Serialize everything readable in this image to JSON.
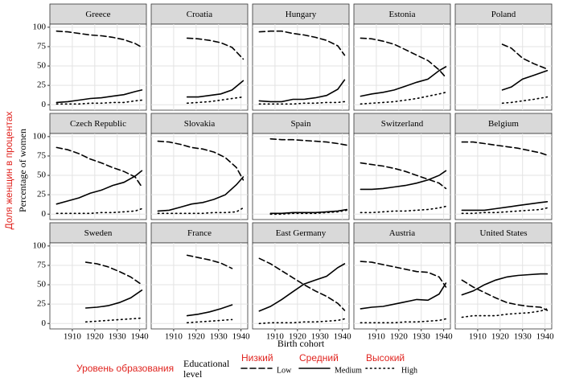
{
  "chart_data": {
    "type": "line",
    "y_label": "Percentage of women",
    "y_label_ru": "Доля женщин в процентах",
    "x_label": "Birth cohort",
    "legend_title": "Educational level",
    "legend_title_ru": "Уровень образования",
    "legend": [
      {
        "name": "Low",
        "label_ru": "Низкий",
        "dash": "7,4",
        "color": "#000000"
      },
      {
        "name": "Medium",
        "label_ru": "Средний",
        "dash": "none",
        "color": "#000000"
      },
      {
        "name": "High",
        "label_ru": "Высокий",
        "dash": "1.5,4",
        "color": "#000000"
      }
    ],
    "xlim": [
      1900,
      1943
    ],
    "xticks": [
      1910,
      1920,
      1930,
      1940
    ],
    "ylim": [
      -7,
      104
    ],
    "yticks": [
      0,
      25,
      50,
      75,
      100
    ],
    "grid": true,
    "panels": [
      {
        "title": "Greece",
        "series": [
          {
            "x": [
              1903,
              1908,
              1913,
              1918,
              1923,
              1928,
              1933,
              1938,
              1941
            ],
            "values": [
              95,
              94,
              92,
              90,
              89,
              87,
              84,
              79,
              74
            ]
          },
          {
            "x": [
              1903,
              1908,
              1913,
              1918,
              1923,
              1928,
              1933,
              1938,
              1941
            ],
            "values": [
              3,
              4,
              6,
              8,
              9,
              11,
              13,
              17,
              19
            ]
          },
          {
            "x": [
              1903,
              1908,
              1913,
              1918,
              1923,
              1928,
              1933,
              1938,
              1941
            ],
            "values": [
              1,
              1,
              1,
              2,
              2,
              3,
              3,
              5,
              6
            ]
          }
        ]
      },
      {
        "title": "Croatia",
        "series": [
          {
            "x": [
              1916,
              1921,
              1926,
              1931,
              1936,
              1941
            ],
            "values": [
              86,
              85,
              83,
              80,
              74,
              59
            ]
          },
          {
            "x": [
              1916,
              1921,
              1926,
              1931,
              1936,
              1941
            ],
            "values": [
              10,
              10,
              12,
              14,
              19,
              31
            ]
          },
          {
            "x": [
              1916,
              1921,
              1926,
              1931,
              1936,
              1941
            ],
            "values": [
              2,
              3,
              4,
              6,
              8,
              10
            ]
          }
        ]
      },
      {
        "title": "Hungary",
        "series": [
          {
            "x": [
              1903,
              1908,
              1913,
              1918,
              1923,
              1928,
              1933,
              1938,
              1941
            ],
            "values": [
              94,
              95,
              95,
              92,
              90,
              87,
              83,
              76,
              64
            ]
          },
          {
            "x": [
              1903,
              1908,
              1913,
              1918,
              1923,
              1928,
              1933,
              1938,
              1941
            ],
            "values": [
              5,
              4,
              4,
              7,
              7,
              9,
              12,
              20,
              32
            ]
          },
          {
            "x": [
              1903,
              1908,
              1913,
              1918,
              1923,
              1928,
              1933,
              1938,
              1941
            ],
            "values": [
              1,
              1,
              1,
              1,
              2,
              2,
              3,
              3,
              4
            ]
          }
        ]
      },
      {
        "title": "Estonia",
        "series": [
          {
            "x": [
              1903,
              1908,
              1913,
              1918,
              1923,
              1928,
              1933,
              1938,
              1941
            ],
            "values": [
              86,
              85,
              82,
              78,
              71,
              64,
              57,
              45,
              35
            ]
          },
          {
            "x": [
              1903,
              1908,
              1913,
              1918,
              1923,
              1928,
              1933,
              1938,
              1941
            ],
            "values": [
              11,
              14,
              16,
              19,
              24,
              29,
              33,
              44,
              49
            ]
          },
          {
            "x": [
              1903,
              1908,
              1913,
              1918,
              1923,
              1928,
              1933,
              1938,
              1941
            ],
            "values": [
              1,
              2,
              3,
              4,
              6,
              8,
              11,
              14,
              16
            ]
          }
        ]
      },
      {
        "title": "Poland",
        "series": [
          {
            "x": [
              1921,
              1925,
              1930,
              1935,
              1941
            ],
            "values": [
              78,
              73,
              60,
              53,
              46
            ]
          },
          {
            "x": [
              1921,
              1925,
              1930,
              1935,
              1941
            ],
            "values": [
              19,
              23,
              33,
              38,
              44
            ]
          },
          {
            "x": [
              1921,
              1925,
              1930,
              1935,
              1941
            ],
            "values": [
              2,
              3,
              5,
              7,
              10
            ]
          }
        ]
      },
      {
        "title": "Czech Republic",
        "series": [
          {
            "x": [
              1903,
              1908,
              1913,
              1918,
              1923,
              1928,
              1933,
              1938,
              1941
            ],
            "values": [
              86,
              83,
              78,
              71,
              66,
              60,
              55,
              48,
              35
            ]
          },
          {
            "x": [
              1903,
              1908,
              1913,
              1918,
              1923,
              1928,
              1933,
              1938,
              1941
            ],
            "values": [
              13,
              17,
              21,
              27,
              31,
              37,
              41,
              49,
              56
            ]
          },
          {
            "x": [
              1903,
              1908,
              1913,
              1918,
              1923,
              1928,
              1933,
              1938,
              1941
            ],
            "values": [
              1,
              1,
              1,
              1,
              2,
              2,
              3,
              4,
              7
            ]
          }
        ]
      },
      {
        "title": "Slovakia",
        "series": [
          {
            "x": [
              1903,
              1908,
              1913,
              1918,
              1923,
              1928,
              1933,
              1938,
              1941
            ],
            "values": [
              94,
              93,
              90,
              86,
              84,
              80,
              73,
              60,
              44
            ]
          },
          {
            "x": [
              1903,
              1908,
              1913,
              1918,
              1923,
              1928,
              1933,
              1938,
              1941
            ],
            "values": [
              4,
              5,
              9,
              13,
              15,
              19,
              25,
              38,
              48
            ]
          },
          {
            "x": [
              1903,
              1908,
              1913,
              1918,
              1923,
              1928,
              1933,
              1938,
              1941
            ],
            "values": [
              1,
              1,
              1,
              1,
              1,
              2,
              2,
              3,
              8
            ]
          }
        ]
      },
      {
        "title": "Spain",
        "series": [
          {
            "x": [
              1908,
              1913,
              1918,
              1923,
              1928,
              1933,
              1938,
              1942
            ],
            "values": [
              97,
              96,
              96,
              95,
              94,
              93,
              91,
              89
            ]
          },
          {
            "x": [
              1908,
              1913,
              1918,
              1923,
              1928,
              1933,
              1938,
              1942
            ],
            "values": [
              1,
              1,
              2,
              2,
              2,
              3,
              4,
              6
            ]
          },
          {
            "x": [
              1908,
              1913,
              1918,
              1923,
              1928,
              1933,
              1938,
              1942
            ],
            "values": [
              0,
              0,
              1,
              1,
              1,
              2,
              3,
              5
            ]
          }
        ]
      },
      {
        "title": "Switzerland",
        "series": [
          {
            "x": [
              1903,
              1908,
              1913,
              1918,
              1923,
              1928,
              1933,
              1938,
              1941
            ],
            "values": [
              66,
              64,
              62,
              59,
              55,
              50,
              45,
              40,
              33
            ]
          },
          {
            "x": [
              1903,
              1908,
              1913,
              1918,
              1923,
              1928,
              1933,
              1938,
              1941
            ],
            "values": [
              32,
              32,
              33,
              35,
              37,
              40,
              44,
              50,
              56
            ]
          },
          {
            "x": [
              1903,
              1908,
              1913,
              1918,
              1923,
              1928,
              1933,
              1938,
              1941
            ],
            "values": [
              2,
              2,
              3,
              4,
              4,
              5,
              6,
              8,
              10
            ]
          }
        ]
      },
      {
        "title": "Belgium",
        "series": [
          {
            "x": [
              1903,
              1908,
              1913,
              1918,
              1923,
              1928,
              1933,
              1938,
              1941
            ],
            "values": [
              93,
              93,
              91,
              89,
              87,
              85,
              82,
              79,
              76
            ]
          },
          {
            "x": [
              1903,
              1908,
              1913,
              1918,
              1923,
              1928,
              1933,
              1938,
              1941
            ],
            "values": [
              5,
              5,
              5,
              7,
              9,
              11,
              13,
              15,
              16
            ]
          },
          {
            "x": [
              1903,
              1908,
              1913,
              1918,
              1923,
              1928,
              1933,
              1938,
              1941
            ],
            "values": [
              1,
              1,
              2,
              2,
              3,
              4,
              5,
              6,
              8
            ]
          }
        ]
      },
      {
        "title": "Sweden",
        "series": [
          {
            "x": [
              1916,
              1921,
              1926,
              1931,
              1936,
              1941
            ],
            "values": [
              79,
              77,
              73,
              67,
              60,
              50
            ]
          },
          {
            "x": [
              1916,
              1921,
              1926,
              1931,
              1936,
              1941
            ],
            "values": [
              20,
              21,
              23,
              27,
              33,
              43
            ]
          },
          {
            "x": [
              1916,
              1921,
              1926,
              1931,
              1936,
              1941
            ],
            "values": [
              2,
              3,
              4,
              5,
              6,
              7
            ]
          }
        ]
      },
      {
        "title": "France",
        "series": [
          {
            "x": [
              1916,
              1921,
              1926,
              1931,
              1936
            ],
            "values": [
              88,
              85,
              82,
              78,
              71
            ]
          },
          {
            "x": [
              1916,
              1921,
              1926,
              1931,
              1936
            ],
            "values": [
              10,
              12,
              15,
              19,
              24
            ]
          },
          {
            "x": [
              1916,
              1921,
              1926,
              1931,
              1936
            ],
            "values": [
              1,
              2,
              3,
              4,
              5
            ]
          }
        ]
      },
      {
        "title": "East Germany",
        "series": [
          {
            "x": [
              1903,
              1908,
              1913,
              1918,
              1923,
              1928,
              1933,
              1938,
              1941
            ],
            "values": [
              84,
              77,
              68,
              59,
              50,
              42,
              35,
              26,
              17
            ]
          },
          {
            "x": [
              1903,
              1908,
              1913,
              1918,
              1923,
              1928,
              1933,
              1938,
              1941
            ],
            "values": [
              16,
              22,
              31,
              41,
              51,
              56,
              61,
              72,
              77
            ]
          },
          {
            "x": [
              1903,
              1908,
              1913,
              1918,
              1923,
              1928,
              1933,
              1938,
              1941
            ],
            "values": [
              0,
              1,
              1,
              1,
              2,
              2,
              3,
              4,
              6
            ]
          }
        ]
      },
      {
        "title": "Austria",
        "series": [
          {
            "x": [
              1903,
              1908,
              1913,
              1918,
              1923,
              1928,
              1933,
              1938,
              1941
            ],
            "values": [
              80,
              79,
              76,
              73,
              70,
              67,
              66,
              60,
              47
            ]
          },
          {
            "x": [
              1903,
              1908,
              1913,
              1918,
              1923,
              1928,
              1933,
              1938,
              1941
            ],
            "values": [
              19,
              21,
              22,
              25,
              28,
              31,
              30,
              38,
              52
            ]
          },
          {
            "x": [
              1903,
              1908,
              1913,
              1918,
              1923,
              1928,
              1933,
              1938,
              1941
            ],
            "values": [
              1,
              1,
              1,
              1,
              2,
              2,
              3,
              4,
              6
            ]
          }
        ]
      },
      {
        "title": "United States",
        "series": [
          {
            "x": [
              1903,
              1908,
              1913,
              1918,
              1923,
              1928,
              1933,
              1938,
              1941
            ],
            "values": [
              56,
              47,
              40,
              33,
              27,
              24,
              22,
              21,
              17
            ]
          },
          {
            "x": [
              1903,
              1908,
              1913,
              1918,
              1923,
              1928,
              1933,
              1938,
              1941
            ],
            "values": [
              37,
              42,
              50,
              56,
              60,
              62,
              63,
              64,
              64
            ]
          },
          {
            "x": [
              1903,
              1908,
              1913,
              1918,
              1923,
              1928,
              1933,
              1938,
              1941
            ],
            "values": [
              8,
              10,
              10,
              10,
              12,
              13,
              14,
              16,
              19
            ]
          }
        ]
      }
    ]
  }
}
